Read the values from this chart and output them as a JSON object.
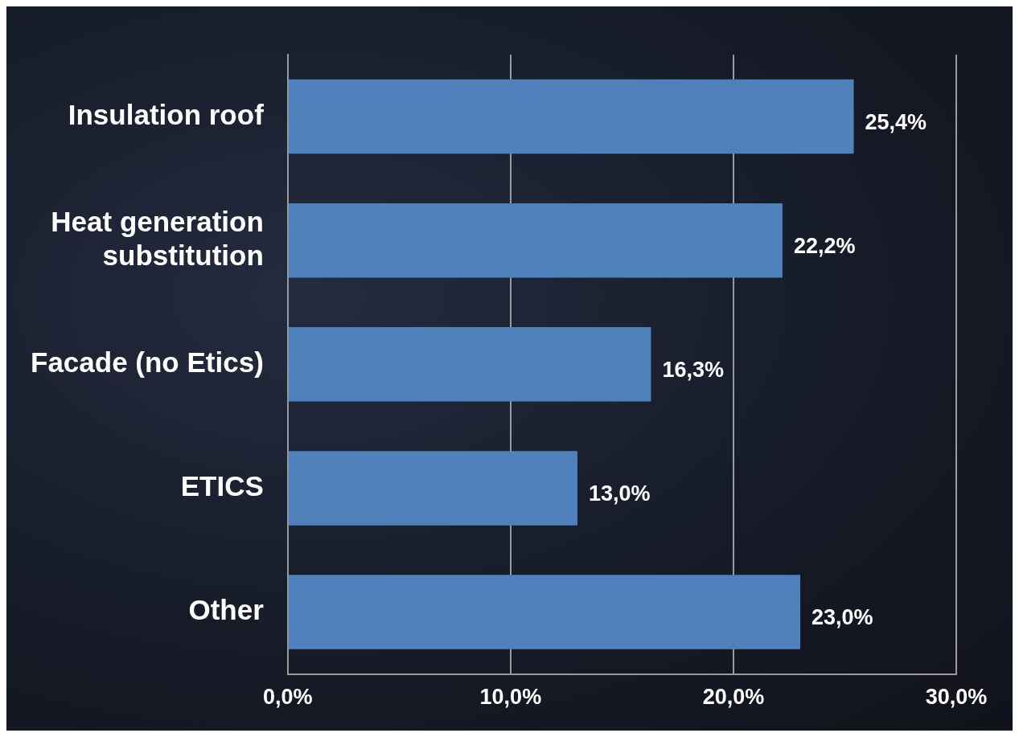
{
  "chart_data": {
    "type": "bar",
    "orientation": "horizontal",
    "categories": [
      "Insulation roof",
      "Heat generation substitution",
      "Facade (no Etics)",
      "ETICS",
      "Other"
    ],
    "values": [
      25.4,
      22.2,
      16.3,
      13.0,
      23.0
    ],
    "value_labels": [
      "25,4%",
      "22,2%",
      "16,3%",
      "13,0%",
      "23,0%"
    ],
    "color": "#4f81bd",
    "xlim": [
      0,
      30
    ],
    "xticks": [
      {
        "value": 0,
        "label": "0,0%"
      },
      {
        "value": 10,
        "label": "10,0%"
      },
      {
        "value": 20,
        "label": "20,0%"
      },
      {
        "value": 30,
        "label": "30,0%"
      }
    ],
    "grid": "x"
  }
}
